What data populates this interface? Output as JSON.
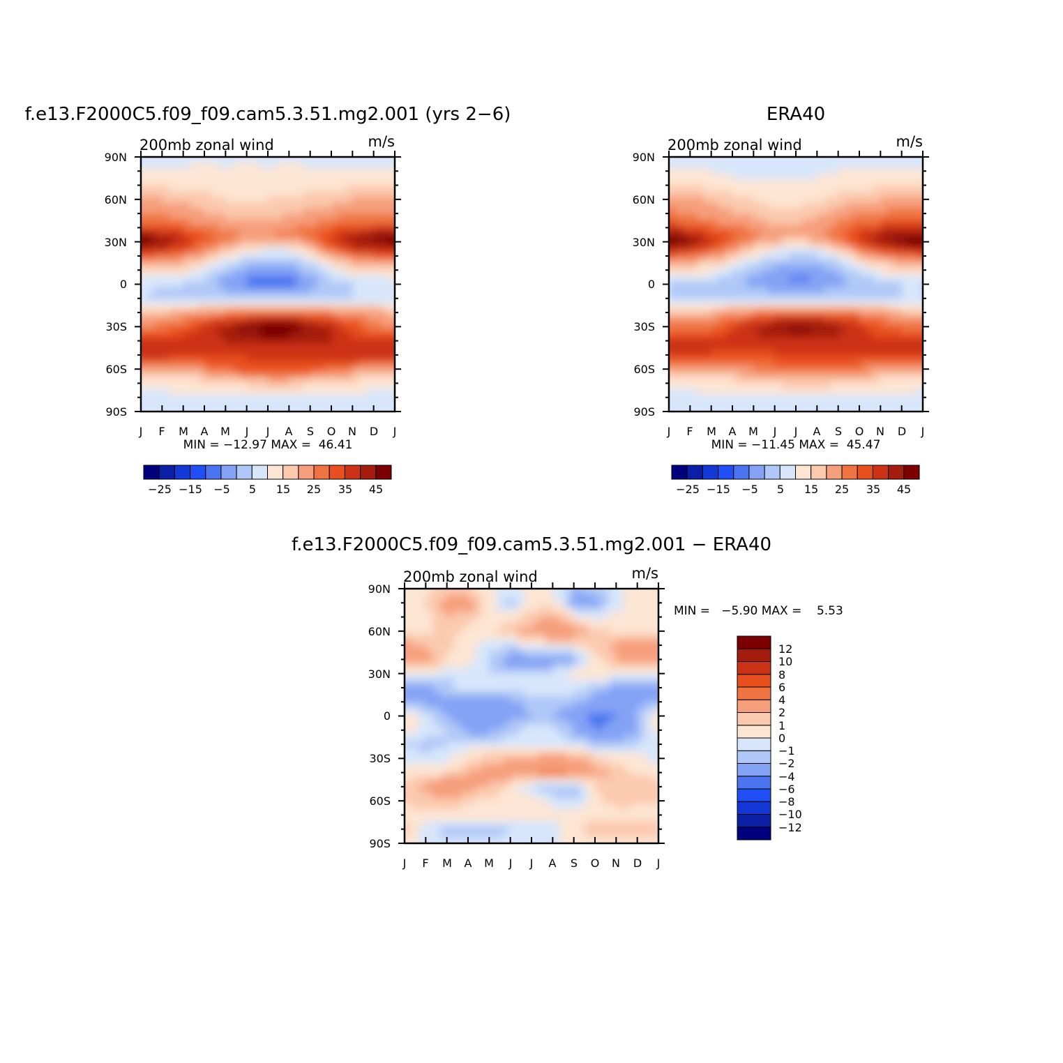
{
  "chart_data": [
    {
      "type": "heatmap",
      "id": "model",
      "title": "f.e13.F2000C5.f09_f09.cam5.3.51.mg2.001 (yrs 2−6)",
      "left_label": "200mb zonal wind",
      "units": "m/s",
      "xticks": [
        "J",
        "F",
        "M",
        "A",
        "M",
        "J",
        "J",
        "A",
        "S",
        "O",
        "N",
        "D",
        "J"
      ],
      "yticks": [
        "90N",
        "60N",
        "30N",
        "0",
        "30S",
        "60S",
        "90S"
      ],
      "ylim": [
        -90,
        90
      ],
      "min": -12.97,
      "max": 46.41,
      "stats_text": "MIN = −12.97 MAX =  46.41",
      "colorbar": {
        "orientation": "horizontal",
        "colors": [
          "#00007f",
          "#0a1fa6",
          "#1438d6",
          "#1f4ff5",
          "#4a74f0",
          "#84a3f5",
          "#b0c8f7",
          "#d7e6fb",
          "#fde5d3",
          "#fbc9ae",
          "#f69f7c",
          "#f07442",
          "#e8501f",
          "#cc3316",
          "#a41c0d",
          "#7c0000"
        ],
        "labels": [
          "−25",
          "−15",
          "−5",
          "5",
          "15",
          "25",
          "35",
          "45"
        ]
      },
      "field": {
        "lats": [
          90,
          75,
          60,
          45,
          35,
          30,
          25,
          15,
          5,
          0,
          -10,
          -20,
          -30,
          -40,
          -50,
          -60,
          -70,
          -80,
          -90
        ],
        "months": [
          1,
          2,
          3,
          4,
          5,
          6,
          7,
          8,
          9,
          10,
          11,
          12
        ],
        "values": [
          [
            4,
            4,
            4,
            4,
            4,
            4,
            4,
            4,
            4,
            4,
            4,
            4
          ],
          [
            6,
            6,
            6,
            7,
            6,
            7,
            6,
            7,
            6,
            6,
            6,
            6
          ],
          [
            15,
            15,
            14,
            12,
            10,
            9,
            10,
            10,
            12,
            13,
            15,
            16
          ],
          [
            22,
            22,
            20,
            18,
            16,
            15,
            15,
            17,
            19,
            21,
            22,
            22
          ],
          [
            38,
            36,
            31,
            26,
            22,
            20,
            20,
            21,
            24,
            30,
            35,
            38
          ],
          [
            44,
            40,
            34,
            26,
            20,
            16,
            14,
            15,
            20,
            30,
            38,
            42
          ],
          [
            36,
            33,
            28,
            20,
            14,
            8,
            5,
            6,
            12,
            24,
            32,
            34
          ],
          [
            18,
            16,
            14,
            8,
            2,
            -3,
            -5,
            -4,
            0,
            8,
            14,
            16
          ],
          [
            6,
            4,
            4,
            0,
            -6,
            -10,
            -12,
            -11,
            -6,
            0,
            4,
            5
          ],
          [
            2,
            0,
            0,
            -2,
            -8,
            -10,
            -12,
            -11,
            -8,
            -2,
            0,
            2
          ],
          [
            0,
            -2,
            -2,
            0,
            0,
            -2,
            -2,
            -2,
            -2,
            0,
            0,
            2
          ],
          [
            14,
            14,
            16,
            18,
            20,
            22,
            24,
            24,
            22,
            20,
            18,
            16
          ],
          [
            20,
            22,
            26,
            32,
            38,
            42,
            46,
            45,
            40,
            34,
            28,
            22
          ],
          [
            30,
            30,
            32,
            34,
            35,
            36,
            37,
            37,
            36,
            35,
            32,
            30
          ],
          [
            34,
            34,
            32,
            32,
            30,
            31,
            31,
            31,
            32,
            32,
            33,
            34
          ],
          [
            16,
            16,
            17,
            20,
            24,
            26,
            27,
            27,
            26,
            24,
            20,
            18
          ],
          [
            6,
            6,
            7,
            8,
            10,
            12,
            12,
            12,
            11,
            9,
            8,
            7
          ],
          [
            2,
            4,
            5,
            4,
            3,
            3,
            4,
            4,
            4,
            3,
            4,
            3
          ],
          [
            3,
            3,
            3,
            3,
            3,
            3,
            3,
            3,
            3,
            3,
            3,
            3
          ]
        ]
      }
    },
    {
      "type": "heatmap",
      "id": "obs",
      "title": "ERA40",
      "left_label": "200mb zonal wind",
      "units": "m/s",
      "xticks": [
        "J",
        "F",
        "M",
        "A",
        "M",
        "J",
        "J",
        "A",
        "S",
        "O",
        "N",
        "D",
        "J"
      ],
      "yticks": [
        "90N",
        "60N",
        "30N",
        "0",
        "30S",
        "60S",
        "90S"
      ],
      "ylim": [
        -90,
        90
      ],
      "min": -11.45,
      "max": 45.47,
      "stats_text": "MIN = −11.45 MAX =  45.47",
      "colorbar": {
        "orientation": "horizontal",
        "colors": [
          "#00007f",
          "#0a1fa6",
          "#1438d6",
          "#1f4ff5",
          "#4a74f0",
          "#84a3f5",
          "#b0c8f7",
          "#d7e6fb",
          "#fde5d3",
          "#fbc9ae",
          "#f69f7c",
          "#f07442",
          "#e8501f",
          "#cc3316",
          "#a41c0d",
          "#7c0000"
        ],
        "labels": [
          "−25",
          "−15",
          "−5",
          "5",
          "15",
          "25",
          "35",
          "45"
        ]
      },
      "field": {
        "lats": [
          90,
          75,
          60,
          45,
          35,
          30,
          25,
          15,
          5,
          0,
          -10,
          -20,
          -30,
          -40,
          -50,
          -60,
          -70,
          -80,
          -90
        ],
        "months": [
          1,
          2,
          3,
          4,
          5,
          6,
          7,
          8,
          9,
          10,
          11,
          12
        ],
        "values": [
          [
            3,
            3,
            3,
            3,
            3,
            3,
            3,
            3,
            3,
            3,
            3,
            3
          ],
          [
            6,
            6,
            6,
            5,
            5,
            5,
            5,
            5,
            6,
            6,
            6,
            6
          ],
          [
            16,
            16,
            14,
            12,
            10,
            8,
            8,
            9,
            12,
            14,
            15,
            16
          ],
          [
            24,
            22,
            20,
            18,
            16,
            14,
            14,
            16,
            20,
            22,
            24,
            24
          ],
          [
            38,
            36,
            30,
            25,
            21,
            18,
            17,
            19,
            24,
            30,
            36,
            38
          ],
          [
            45,
            42,
            34,
            24,
            18,
            14,
            12,
            14,
            20,
            30,
            38,
            43
          ],
          [
            36,
            32,
            26,
            18,
            12,
            6,
            4,
            5,
            10,
            22,
            30,
            33
          ],
          [
            16,
            14,
            12,
            6,
            0,
            -4,
            -6,
            -5,
            -2,
            6,
            12,
            14
          ],
          [
            4,
            2,
            2,
            -2,
            -6,
            -9,
            -11,
            -10,
            -6,
            -2,
            2,
            4
          ],
          [
            0,
            -2,
            -2,
            -4,
            -6,
            -8,
            -10,
            -9,
            -6,
            -4,
            -2,
            0
          ],
          [
            0,
            -2,
            -2,
            -1,
            -1,
            -1,
            -1,
            -1,
            -1,
            0,
            0,
            0
          ],
          [
            14,
            14,
            15,
            18,
            20,
            23,
            24,
            24,
            22,
            20,
            17,
            15
          ],
          [
            22,
            22,
            24,
            30,
            36,
            40,
            42,
            41,
            38,
            32,
            26,
            24
          ],
          [
            30,
            30,
            30,
            32,
            33,
            34,
            34,
            34,
            33,
            32,
            30,
            30
          ],
          [
            32,
            30,
            30,
            29,
            29,
            29,
            30,
            30,
            30,
            31,
            32,
            32
          ],
          [
            16,
            15,
            16,
            18,
            20,
            22,
            24,
            24,
            22,
            21,
            18,
            17
          ],
          [
            6,
            6,
            7,
            8,
            10,
            11,
            12,
            12,
            11,
            9,
            8,
            7
          ],
          [
            4,
            4,
            4,
            4,
            4,
            4,
            4,
            4,
            4,
            4,
            4,
            4
          ],
          [
            3,
            3,
            3,
            3,
            3,
            3,
            3,
            3,
            3,
            3,
            3,
            3
          ]
        ]
      }
    },
    {
      "type": "heatmap",
      "id": "diff",
      "title": "f.e13.F2000C5.f09_f09.cam5.3.51.mg2.001 − ERA40",
      "left_label": "200mb zonal wind",
      "units": "m/s",
      "xticks": [
        "J",
        "F",
        "M",
        "A",
        "M",
        "J",
        "J",
        "A",
        "S",
        "O",
        "N",
        "D",
        "J"
      ],
      "yticks": [
        "90N",
        "60N",
        "30N",
        "0",
        "30S",
        "60S",
        "90S"
      ],
      "ylim": [
        -90,
        90
      ],
      "min": -5.9,
      "max": 5.53,
      "stats_text": "MIN =   −5.90 MAX =    5.53",
      "colorbar": {
        "orientation": "vertical",
        "colors": [
          "#00007f",
          "#0a1fa6",
          "#1438d6",
          "#1f4ff5",
          "#4a74f0",
          "#84a3f5",
          "#b0c8f7",
          "#d7e6fb",
          "#fde5d3",
          "#fbc9ae",
          "#f69f7c",
          "#f07442",
          "#e8501f",
          "#cc3316",
          "#a41c0d",
          "#7c0000"
        ],
        "labels": [
          "12",
          "10",
          "8",
          "6",
          "4",
          "2",
          "1",
          "0",
          "−1",
          "−2",
          "−4",
          "−6",
          "−8",
          "−10",
          "−12"
        ]
      },
      "field": {
        "lats": [
          90,
          80,
          70,
          60,
          50,
          40,
          30,
          20,
          10,
          0,
          -10,
          -20,
          -30,
          -40,
          -50,
          -60,
          -70,
          -80,
          -90
        ],
        "months": [
          1,
          2,
          3,
          4,
          5,
          6,
          7,
          8,
          9,
          10,
          11,
          12
        ],
        "values": [
          [
            0.5,
            0.5,
            1.5,
            1.2,
            0.2,
            -0.5,
            0.5,
            0.3,
            -2,
            -1.5,
            -0.5,
            0.5
          ],
          [
            0.5,
            1,
            2.5,
            3,
            0.5,
            -1.5,
            0.5,
            0.5,
            -2.5,
            -2.5,
            -0.5,
            0.5
          ],
          [
            0.5,
            0.5,
            2,
            1.5,
            0.5,
            0.5,
            1.5,
            2.5,
            0.5,
            -0.5,
            0.5,
            0.5
          ],
          [
            0.5,
            0.5,
            1.5,
            0.5,
            0.5,
            1.5,
            2.5,
            3.5,
            3,
            1.5,
            0.5,
            0.5
          ],
          [
            2.5,
            2,
            1.2,
            0.5,
            -0.5,
            -1,
            0.5,
            0.5,
            0.5,
            1.5,
            2.5,
            2.5
          ],
          [
            3,
            2.5,
            1,
            0.5,
            -1,
            -3,
            -3.5,
            -3,
            -2,
            0.5,
            2,
            3
          ],
          [
            0.5,
            0.5,
            -0.5,
            -0.5,
            -1,
            -1,
            -1,
            -0.5,
            0.5,
            0.5,
            0.5,
            0.5
          ],
          [
            -3.5,
            -2.5,
            -1.5,
            -0.5,
            -0.5,
            -0.5,
            -0.5,
            -0.5,
            -0.5,
            -1.5,
            -2.5,
            -3.5
          ],
          [
            -2,
            -2.5,
            -2.5,
            -2.5,
            -2.5,
            -2.5,
            -1.5,
            -1.2,
            -1.5,
            -2.5,
            -3,
            -2.5
          ],
          [
            1.2,
            -0.5,
            -2,
            -3.5,
            -3.5,
            -2.5,
            -2,
            -2,
            -3,
            -5,
            -4,
            -2
          ],
          [
            0.5,
            -0.5,
            -1,
            -2.5,
            -2.5,
            -1.5,
            -0.5,
            -0.5,
            -2,
            -4,
            -3.5,
            -2
          ],
          [
            -1,
            -1.5,
            -1,
            -0.5,
            -0.5,
            -0.5,
            -0.5,
            -0.5,
            -0.5,
            -1.5,
            -1.5,
            -1
          ],
          [
            -0.5,
            -0.5,
            -0.5,
            1,
            1.5,
            2,
            2.5,
            3,
            2.5,
            1.5,
            0.5,
            0.5
          ],
          [
            0.5,
            0.5,
            1,
            2,
            2.5,
            3,
            3.5,
            4.5,
            3.5,
            2.5,
            1.5,
            0.5
          ],
          [
            1.5,
            2.5,
            4,
            2.5,
            2,
            0.5,
            -1,
            -2,
            -2,
            1,
            2,
            2
          ],
          [
            1.2,
            1.5,
            1.5,
            1.2,
            0.5,
            0.5,
            0.5,
            -0.5,
            -1,
            0.5,
            1.5,
            1.2
          ],
          [
            0.5,
            0.5,
            0.5,
            0.5,
            0.5,
            0.5,
            0.5,
            0.5,
            0.5,
            0.5,
            0.5,
            0.5
          ],
          [
            1.5,
            -0.5,
            -1.5,
            -2,
            -2,
            -1,
            -0.5,
            -0.5,
            0.5,
            1.5,
            2,
            1.5
          ],
          [
            0.5,
            -0.5,
            -0.5,
            -0.5,
            -0.5,
            -0.5,
            -0.5,
            -0.5,
            0.5,
            0.5,
            0.5,
            0.5
          ]
        ]
      }
    }
  ]
}
